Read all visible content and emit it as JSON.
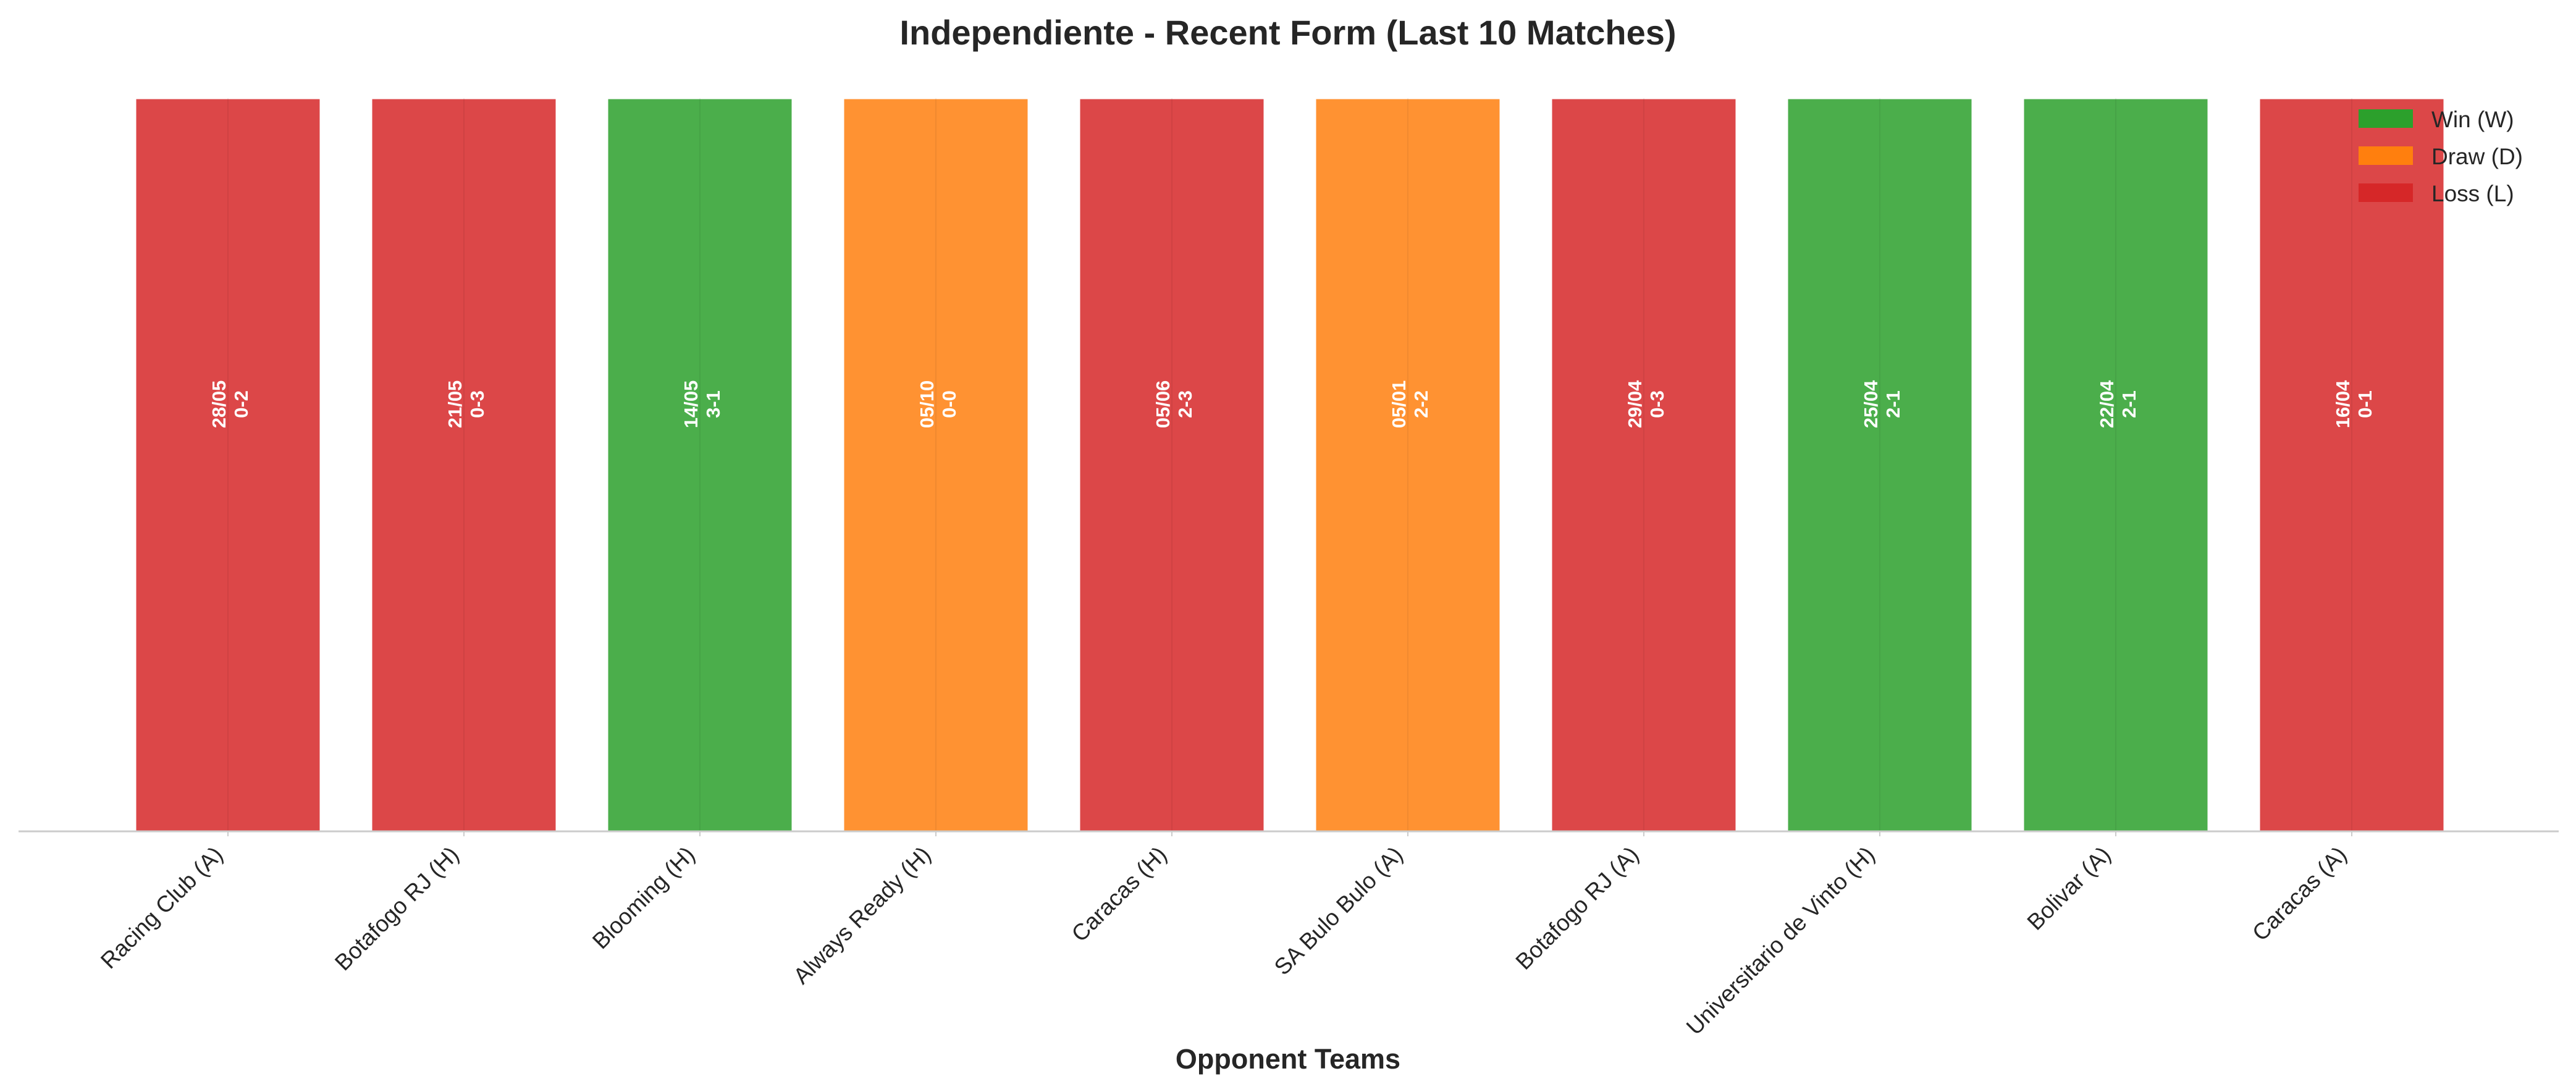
{
  "chart_data": {
    "type": "bar",
    "title": "Independiente - Recent Form (Last 10 Matches)",
    "xlabel": "Opponent Teams",
    "ylabel": "",
    "ylim": [
      0,
      1
    ],
    "grid": false,
    "legend_position": "top-right",
    "categories": [
      "Racing Club (A)",
      "Botafogo RJ (H)",
      "Blooming (H)",
      "Always Ready (H)",
      "Caracas (H)",
      "SA Bulo Bulo (A)",
      "Botafogo RJ (A)",
      "Universitario de Vinto (H)",
      "Bolivar (A)",
      "Caracas (A)"
    ],
    "values": [
      1,
      1,
      1,
      1,
      1,
      1,
      1,
      1,
      1,
      1
    ],
    "results": [
      "L",
      "L",
      "W",
      "D",
      "L",
      "D",
      "L",
      "W",
      "W",
      "L"
    ],
    "dates": [
      "28/05",
      "21/05",
      "14/05",
      "05/10",
      "05/06",
      "05/01",
      "29/04",
      "25/04",
      "22/04",
      "16/04"
    ],
    "scores": [
      "0-2",
      "0-3",
      "3-1",
      "0-0",
      "2-3",
      "2-2",
      "0-3",
      "2-1",
      "2-1",
      "0-1"
    ],
    "legend": [
      {
        "key": "W",
        "label": "Win (W)"
      },
      {
        "key": "D",
        "label": "Draw (D)"
      },
      {
        "key": "L",
        "label": "Loss (L)"
      }
    ],
    "colors": {
      "W": "#2ca02c",
      "D": "#ff7f0e",
      "L": "#d62728",
      "axis": "#cccccc",
      "text": "#262626"
    }
  }
}
